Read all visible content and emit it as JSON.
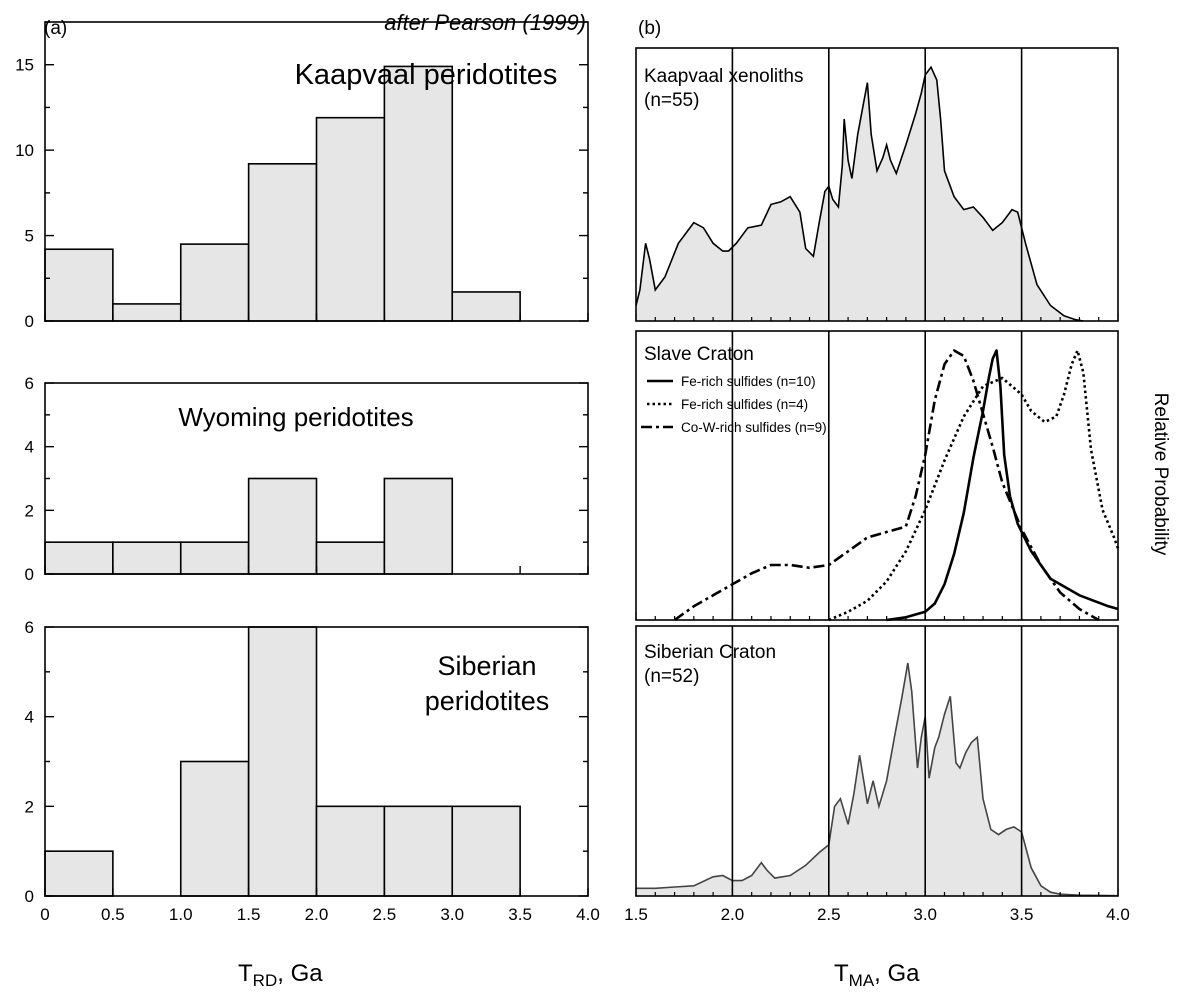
{
  "figure": {
    "panel_a_label": "(a)",
    "panel_b_label": "(b)",
    "credit": "after Pearson (1999)",
    "left_xlabel_main": "T",
    "left_xlabel_sub": "RD",
    "left_xlabel_unit": ", Ga",
    "right_xlabel_main": "T",
    "right_xlabel_sub": "MA",
    "right_xlabel_unit": ", Ga",
    "right_ylabel": "Relative Probability"
  },
  "chart_data": [
    {
      "id": "kaapvaal-hist",
      "type": "bar",
      "title": "Kaapvaal peridotites",
      "bins": [
        0,
        0.5,
        1.0,
        1.5,
        2.0,
        2.5,
        3.0,
        3.5
      ],
      "bin_width": 0.5,
      "values": [
        4.2,
        1,
        4.5,
        9.2,
        11.9,
        14.9,
        1.7,
        0
      ],
      "xlim": [
        0,
        4.0
      ],
      "ylim": [
        0,
        17.5
      ],
      "yticks": [
        "0",
        "5",
        "10",
        "15"
      ],
      "bar_color": "#e6e6e6"
    },
    {
      "id": "wyoming-hist",
      "type": "bar",
      "title": "Wyoming peridotites",
      "bins": [
        0,
        0.5,
        1.0,
        1.5,
        2.0,
        2.5,
        3.0,
        3.5
      ],
      "bin_width": 0.5,
      "values": [
        1,
        1,
        1,
        3,
        1,
        3,
        0,
        0
      ],
      "xlim": [
        0,
        4.0
      ],
      "ylim": [
        0,
        6
      ],
      "yticks": [
        "0",
        "2",
        "4",
        "6"
      ],
      "bar_color": "#e6e6e6"
    },
    {
      "id": "siberian-hist",
      "type": "bar",
      "title_line1": "Siberian",
      "title_line2": "peridotites",
      "bins": [
        0,
        0.5,
        1.0,
        1.5,
        2.0,
        2.5,
        3.0,
        3.5
      ],
      "bin_width": 0.5,
      "values": [
        1,
        0,
        3,
        6,
        2,
        2,
        2,
        0
      ],
      "xlim": [
        0,
        4.0
      ],
      "ylim": [
        0,
        6
      ],
      "yticks": [
        "0",
        "2",
        "4",
        "6"
      ],
      "xticks": [
        "0",
        "0.5",
        "1.0",
        "1.5",
        "2.0",
        "2.5",
        "3.0",
        "3.5",
        "4.0"
      ],
      "bar_color": "#e6e6e6"
    },
    {
      "id": "kaapvaal-pdf",
      "type": "area",
      "title_line1": "Kaapvaal xenoliths",
      "title_line2": "(n=55)",
      "xlim": [
        1.5,
        4.0
      ],
      "ylim": [
        0,
        1
      ],
      "vlines": [
        2.0,
        2.5,
        3.0,
        3.5
      ],
      "x": [
        1.5,
        1.52,
        1.55,
        1.57,
        1.6,
        1.65,
        1.72,
        1.8,
        1.85,
        1.9,
        1.95,
        1.98,
        2.02,
        2.08,
        2.15,
        2.2,
        2.25,
        2.3,
        2.35,
        2.38,
        2.42,
        2.45,
        2.48,
        2.5,
        2.52,
        2.55,
        2.57,
        2.58,
        2.6,
        2.62,
        2.65,
        2.68,
        2.7,
        2.72,
        2.75,
        2.78,
        2.8,
        2.82,
        2.85,
        2.9,
        2.95,
        2.98,
        3.0,
        3.03,
        3.06,
        3.08,
        3.1,
        3.15,
        3.2,
        3.25,
        3.3,
        3.35,
        3.4,
        3.45,
        3.48,
        3.52,
        3.58,
        3.65,
        3.72,
        3.78,
        3.82
      ],
      "y": [
        0.06,
        0.12,
        0.3,
        0.24,
        0.12,
        0.17,
        0.3,
        0.38,
        0.36,
        0.3,
        0.27,
        0.27,
        0.3,
        0.36,
        0.37,
        0.45,
        0.46,
        0.48,
        0.42,
        0.28,
        0.25,
        0.38,
        0.5,
        0.52,
        0.47,
        0.44,
        0.6,
        0.78,
        0.62,
        0.55,
        0.72,
        0.84,
        0.92,
        0.72,
        0.58,
        0.63,
        0.68,
        0.62,
        0.57,
        0.68,
        0.8,
        0.88,
        0.95,
        0.98,
        0.93,
        0.78,
        0.58,
        0.48,
        0.43,
        0.44,
        0.4,
        0.35,
        0.38,
        0.43,
        0.42,
        0.3,
        0.14,
        0.06,
        0.02,
        0.005,
        0
      ],
      "fill_color": "#e6e6e6"
    },
    {
      "id": "slave-pdf",
      "type": "line",
      "title": "Slave Craton",
      "xlim": [
        1.5,
        4.0
      ],
      "ylim": [
        0,
        1
      ],
      "vlines": [
        2.0,
        2.5,
        3.0,
        3.5
      ],
      "legend": "top-left",
      "series": [
        {
          "name": "Fe-rich sulfides (n=10)",
          "style": "solid",
          "x": [
            2.8,
            2.9,
            3.0,
            3.05,
            3.1,
            3.15,
            3.2,
            3.25,
            3.3,
            3.33,
            3.35,
            3.37,
            3.39,
            3.41,
            3.44,
            3.48,
            3.55,
            3.65,
            3.8,
            3.95,
            4.0
          ],
          "y": [
            0,
            0.01,
            0.03,
            0.06,
            0.13,
            0.24,
            0.39,
            0.59,
            0.76,
            0.88,
            0.95,
            0.98,
            0.85,
            0.6,
            0.45,
            0.35,
            0.25,
            0.15,
            0.09,
            0.05,
            0.04
          ]
        },
        {
          "name": "Fe-rich sulfides (n=4)",
          "style": "dotted",
          "x": [
            2.5,
            2.6,
            2.7,
            2.8,
            2.9,
            3.0,
            3.1,
            3.2,
            3.3,
            3.4,
            3.5,
            3.55,
            3.62,
            3.68,
            3.72,
            3.76,
            3.79,
            3.82,
            3.86,
            3.92,
            3.98,
            4.0
          ],
          "y": [
            0,
            0.03,
            0.07,
            0.14,
            0.25,
            0.4,
            0.58,
            0.74,
            0.85,
            0.88,
            0.82,
            0.76,
            0.72,
            0.74,
            0.82,
            0.93,
            0.98,
            0.9,
            0.62,
            0.4,
            0.3,
            0.26
          ]
        },
        {
          "name": "Co-W-rich sulfides (n=9)",
          "style": "dashdot",
          "x": [
            1.7,
            1.8,
            1.9,
            2.0,
            2.1,
            2.2,
            2.3,
            2.4,
            2.5,
            2.6,
            2.7,
            2.8,
            2.9,
            2.95,
            3.0,
            3.05,
            3.1,
            3.15,
            3.2,
            3.25,
            3.3,
            3.35,
            3.4,
            3.5,
            3.6,
            3.7,
            3.8,
            3.9
          ],
          "y": [
            0.0,
            0.05,
            0.09,
            0.13,
            0.17,
            0.2,
            0.2,
            0.19,
            0.2,
            0.25,
            0.3,
            0.32,
            0.34,
            0.45,
            0.6,
            0.8,
            0.93,
            0.98,
            0.96,
            0.87,
            0.75,
            0.63,
            0.5,
            0.33,
            0.2,
            0.1,
            0.04,
            0.0
          ]
        }
      ]
    },
    {
      "id": "siberian-pdf",
      "type": "area",
      "title_line1": "Siberian Craton",
      "title_line2": "(n=52)",
      "xlim": [
        1.5,
        4.0
      ],
      "ylim": [
        0,
        1
      ],
      "xticks": [
        "1.5",
        "2.0",
        "2.5",
        "3.0",
        "3.5",
        "4.0"
      ],
      "vlines": [
        2.0,
        2.5,
        3.0,
        3.5
      ],
      "x": [
        1.5,
        1.6,
        1.7,
        1.8,
        1.9,
        1.95,
        2.0,
        2.05,
        2.1,
        2.15,
        2.18,
        2.22,
        2.3,
        2.38,
        2.45,
        2.5,
        2.53,
        2.56,
        2.6,
        2.63,
        2.66,
        2.7,
        2.73,
        2.76,
        2.8,
        2.84,
        2.88,
        2.91,
        2.93,
        2.96,
        2.98,
        3.0,
        3.02,
        3.05,
        3.07,
        3.1,
        3.13,
        3.16,
        3.18,
        3.21,
        3.24,
        3.27,
        3.3,
        3.34,
        3.38,
        3.42,
        3.46,
        3.5,
        3.55,
        3.6,
        3.65,
        3.7,
        3.8,
        4.0
      ],
      "y": [
        0.03,
        0.03,
        0.035,
        0.04,
        0.075,
        0.08,
        0.06,
        0.06,
        0.08,
        0.13,
        0.1,
        0.07,
        0.08,
        0.12,
        0.17,
        0.2,
        0.35,
        0.38,
        0.28,
        0.4,
        0.55,
        0.36,
        0.45,
        0.35,
        0.45,
        0.62,
        0.78,
        0.91,
        0.8,
        0.5,
        0.62,
        0.7,
        0.46,
        0.58,
        0.62,
        0.71,
        0.78,
        0.52,
        0.5,
        0.56,
        0.6,
        0.62,
        0.38,
        0.26,
        0.24,
        0.26,
        0.27,
        0.25,
        0.11,
        0.04,
        0.015,
        0.007,
        0.003,
        0.001
      ],
      "fill_color": "#e6e6e6"
    }
  ]
}
